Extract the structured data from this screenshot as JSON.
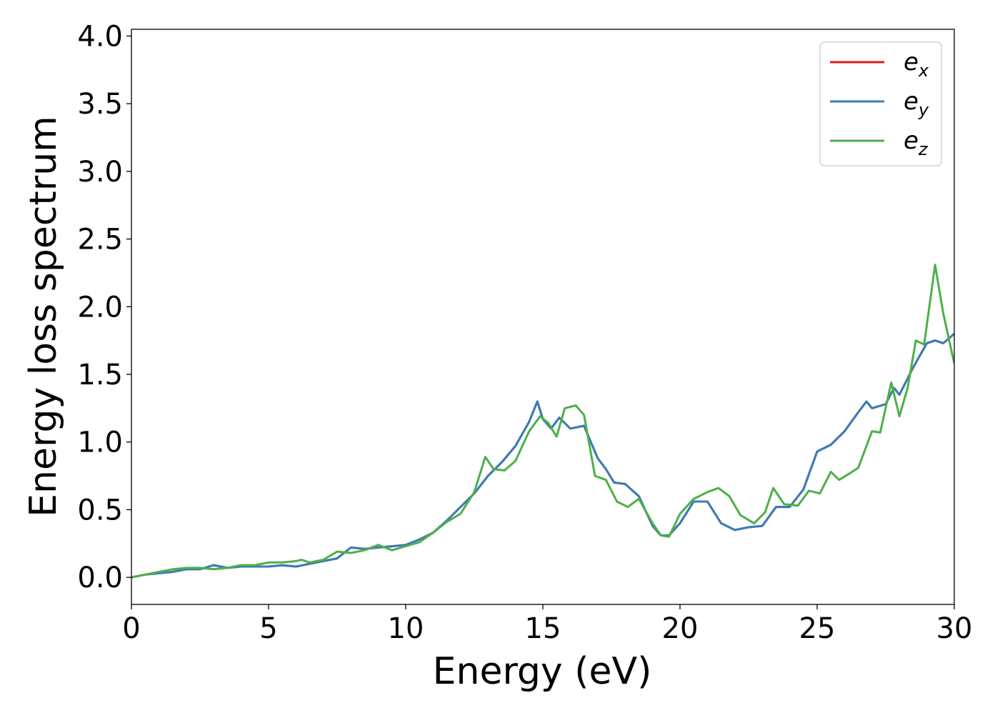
{
  "chart_data": {
    "type": "line",
    "title": "",
    "xlabel": "Energy (eV)",
    "ylabel": "Energy loss spectrum",
    "xlim": [
      0,
      30
    ],
    "ylim": [
      -0.2,
      4.05
    ],
    "xticks": [
      0,
      5,
      10,
      15,
      20,
      25,
      30
    ],
    "xtick_labels": [
      "0",
      "5",
      "10",
      "15",
      "20",
      "25",
      "30"
    ],
    "yticks": [
      0.0,
      0.5,
      1.0,
      1.5,
      2.0,
      2.5,
      3.0,
      3.5,
      4.0
    ],
    "ytick_labels": [
      "0.0",
      "0.5",
      "1.0",
      "1.5",
      "2.0",
      "2.5",
      "3.0",
      "3.5",
      "4.0"
    ],
    "grid": false,
    "legend": {
      "placement": "top-right",
      "entries": [
        {
          "base": "e",
          "sub": "x",
          "color": "#e41a1c"
        },
        {
          "base": "e",
          "sub": "y",
          "color": "#377eb8"
        },
        {
          "base": "e",
          "sub": "z",
          "color": "#4daf4a"
        }
      ]
    },
    "series": [
      {
        "color": "#e41a1c",
        "x": [
          0,
          0.5,
          1,
          1.5,
          2,
          2.5,
          3,
          3.5,
          4,
          4.5,
          5,
          5.5,
          6,
          6.5,
          7,
          7.5,
          8,
          8.5,
          9,
          9.5,
          10,
          10.5,
          11,
          11.5,
          12,
          12.5,
          13,
          13.5,
          14,
          14.5,
          14.8,
          15,
          15.3,
          15.6,
          16,
          16.5,
          17,
          17.3,
          17.6,
          18,
          18.5,
          19,
          19.3,
          19.6,
          20,
          20.5,
          21,
          21.5,
          22,
          22.5,
          23,
          23.5,
          24,
          24.5,
          25,
          25.5,
          26,
          26.5,
          26.8,
          27,
          27.5,
          27.8,
          28,
          28.5,
          29,
          29.3,
          29.6,
          30
        ],
        "y": [
          0.0,
          0.02,
          0.03,
          0.04,
          0.06,
          0.06,
          0.09,
          0.07,
          0.08,
          0.08,
          0.08,
          0.09,
          0.08,
          0.1,
          0.12,
          0.14,
          0.22,
          0.21,
          0.22,
          0.23,
          0.24,
          0.28,
          0.33,
          0.42,
          0.52,
          0.62,
          0.75,
          0.85,
          0.97,
          1.15,
          1.3,
          1.17,
          1.1,
          1.18,
          1.1,
          1.12,
          0.88,
          0.8,
          0.7,
          0.69,
          0.6,
          0.38,
          0.31,
          0.31,
          0.4,
          0.56,
          0.56,
          0.4,
          0.35,
          0.37,
          0.38,
          0.52,
          0.52,
          0.65,
          0.93,
          0.98,
          1.08,
          1.22,
          1.3,
          1.25,
          1.28,
          1.4,
          1.35,
          1.55,
          1.73,
          1.75,
          1.73,
          1.8
        ]
      },
      {
        "color": "#377eb8",
        "x": [
          0,
          0.5,
          1,
          1.5,
          2,
          2.5,
          3,
          3.5,
          4,
          4.5,
          5,
          5.5,
          6,
          6.5,
          7,
          7.5,
          8,
          8.5,
          9,
          9.5,
          10,
          10.5,
          11,
          11.5,
          12,
          12.5,
          13,
          13.5,
          14,
          14.5,
          14.8,
          15,
          15.3,
          15.6,
          16,
          16.5,
          17,
          17.3,
          17.6,
          18,
          18.5,
          19,
          19.3,
          19.6,
          20,
          20.5,
          21,
          21.5,
          22,
          22.5,
          23,
          23.5,
          24,
          24.5,
          25,
          25.5,
          26,
          26.5,
          26.8,
          27,
          27.5,
          27.8,
          28,
          28.5,
          29,
          29.3,
          29.6,
          30
        ],
        "y": [
          0.0,
          0.02,
          0.03,
          0.04,
          0.06,
          0.06,
          0.09,
          0.07,
          0.08,
          0.08,
          0.08,
          0.09,
          0.08,
          0.1,
          0.12,
          0.14,
          0.22,
          0.21,
          0.22,
          0.23,
          0.24,
          0.28,
          0.33,
          0.42,
          0.52,
          0.62,
          0.75,
          0.85,
          0.97,
          1.15,
          1.3,
          1.17,
          1.1,
          1.18,
          1.1,
          1.12,
          0.88,
          0.8,
          0.7,
          0.69,
          0.6,
          0.38,
          0.31,
          0.31,
          0.4,
          0.56,
          0.56,
          0.4,
          0.35,
          0.37,
          0.38,
          0.52,
          0.52,
          0.65,
          0.93,
          0.98,
          1.08,
          1.22,
          1.3,
          1.25,
          1.28,
          1.4,
          1.35,
          1.55,
          1.73,
          1.75,
          1.73,
          1.8
        ]
      },
      {
        "color": "#4daf4a",
        "x": [
          0,
          0.5,
          1,
          1.5,
          2,
          2.5,
          3,
          3.5,
          4,
          4.5,
          5,
          5.5,
          6,
          6.2,
          6.5,
          7,
          7.5,
          8,
          8.5,
          9,
          9.5,
          10,
          10.5,
          11,
          11.5,
          12,
          12.5,
          12.9,
          13.2,
          13.6,
          14,
          14.5,
          14.9,
          15.2,
          15.5,
          15.8,
          16.2,
          16.5,
          16.9,
          17.3,
          17.7,
          18.1,
          18.5,
          19,
          19.3,
          19.6,
          20,
          20.5,
          21,
          21.4,
          21.8,
          22.2,
          22.7,
          23.1,
          23.4,
          23.8,
          24.3,
          24.7,
          25.1,
          25.5,
          25.8,
          26.2,
          26.5,
          27,
          27.3,
          27.7,
          28.0,
          28.3,
          28.6,
          28.9,
          29.3,
          29.6,
          30
        ],
        "y": [
          0.0,
          0.02,
          0.04,
          0.06,
          0.07,
          0.07,
          0.06,
          0.07,
          0.09,
          0.09,
          0.11,
          0.11,
          0.12,
          0.13,
          0.11,
          0.13,
          0.19,
          0.18,
          0.2,
          0.24,
          0.2,
          0.23,
          0.26,
          0.33,
          0.41,
          0.47,
          0.63,
          0.89,
          0.8,
          0.79,
          0.86,
          1.08,
          1.19,
          1.14,
          1.04,
          1.25,
          1.27,
          1.2,
          0.75,
          0.72,
          0.56,
          0.52,
          0.58,
          0.4,
          0.31,
          0.3,
          0.47,
          0.58,
          0.63,
          0.66,
          0.6,
          0.46,
          0.4,
          0.48,
          0.66,
          0.54,
          0.53,
          0.64,
          0.62,
          0.78,
          0.72,
          0.77,
          0.81,
          1.08,
          1.07,
          1.44,
          1.19,
          1.4,
          1.75,
          1.72,
          2.31,
          1.95,
          1.58
        ]
      }
    ]
  }
}
